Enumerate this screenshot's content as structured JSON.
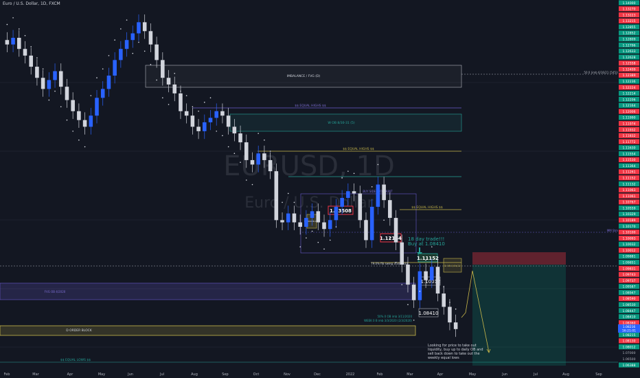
{
  "header": {
    "symbol_title": "Euro / U.S. Dollar, 1D, FXCM"
  },
  "watermark": {
    "ticker": "EURUSD, 1D",
    "name": "Euro / U.S. Dollar"
  },
  "colors": {
    "background": "#131722",
    "candle_up": "#2962ff",
    "candle_down": "#d1d4dc",
    "price_green": "#089981",
    "price_red": "#f23645",
    "zone_blue": "#4a3d8f",
    "zone_yellow": "#c9b84a",
    "teal": "#26a69a"
  },
  "chart_data": {
    "type": "candlestick",
    "x_ticks": [
      "Feb",
      "Mar",
      "Apr",
      "May",
      "Jun",
      "Jul",
      "Aug",
      "Sep",
      "Oct",
      "Nov",
      "Dec",
      "2022",
      "Feb",
      "Mar",
      "Apr",
      "May",
      "Jun",
      "Jul",
      "Aug",
      "Sep"
    ],
    "y_ticks": [
      "1.14000",
      "1.13270",
      "1.13223",
      "1.13215",
      "1.12855",
      "1.12852",
      "1.12809",
      "1.12796",
      "1.12633",
      "1.12628",
      "1.12558",
      "1.12409",
      "1.12389",
      "1.12236",
      "1.12224",
      "1.12214",
      "1.12206",
      "1.12164",
      "1.12006",
      "1.11990",
      "1.11974",
      "1.11932",
      "1.11832",
      "1.11772",
      "1.11630",
      "1.11554",
      "1.11530",
      "1.11364",
      "1.11261",
      "1.11152",
      "1.11132",
      "1.11063",
      "1.11061",
      "1.10767",
      "1.10559",
      "1.10329",
      "1.10189",
      "1.10170",
      "1.10100",
      "1.10093",
      "1.10032",
      "1.10012",
      "1.09881",
      "1.09851",
      "1.09831",
      "1.09743",
      "1.09737",
      "1.09587",
      "1.08947",
      "1.08590",
      "1.08530",
      "1.08447",
      "1.08410",
      "1.08360",
      "1.08216",
      "1.08215",
      "1.08130",
      "1.08012",
      "1.07000",
      "1.06500",
      "1.06388"
    ],
    "y_axis_colors": [
      "g",
      "r",
      "r",
      "r",
      "g",
      "g",
      "g",
      "g",
      "g",
      "g",
      "r",
      "r",
      "r",
      "g",
      "r",
      "g",
      "g",
      "g",
      "r",
      "g",
      "r",
      "r",
      "r",
      "r",
      "g",
      "g",
      "r",
      "g",
      "r",
      "r",
      "g",
      "r",
      "r",
      "r",
      "g",
      "g",
      "r",
      "g",
      "r",
      "r",
      "g",
      "r",
      "g",
      "g",
      "r",
      "r",
      "r",
      "g",
      "g",
      "r",
      "g",
      "g",
      "g",
      "r",
      "g",
      "g",
      "r",
      "g",
      "n",
      "n",
      "g"
    ],
    "current_price": "1.08216",
    "countdown": "16:21:01",
    "candles_approx": {
      "note": "approximate daily closes",
      "closes": [
        1.21,
        1.213,
        1.208,
        1.205,
        1.2,
        1.195,
        1.19,
        1.194,
        1.198,
        1.191,
        1.185,
        1.18,
        1.176,
        1.173,
        1.178,
        1.186,
        1.19,
        1.196,
        1.203,
        1.208,
        1.212,
        1.215,
        1.22,
        1.216,
        1.21,
        1.203,
        1.195,
        1.192,
        1.188,
        1.18,
        1.178,
        1.173,
        1.171,
        1.175,
        1.177,
        1.18,
        1.178,
        1.173,
        1.17,
        1.166,
        1.158,
        1.156,
        1.161,
        1.158,
        1.153,
        1.131,
        1.13,
        1.134,
        1.13,
        1.128,
        1.132,
        1.135,
        1.13,
        1.127,
        1.131,
        1.137,
        1.141,
        1.144,
        1.143,
        1.131,
        1.122,
        1.137,
        1.147,
        1.14,
        1.132,
        1.121,
        1.111,
        1.102,
        1.095,
        1.108,
        1.104,
        1.11,
        1.098,
        1.092,
        1.085,
        1.082
      ]
    }
  },
  "annotations": {
    "imbalance": "IMBALANCE / FVG (D)",
    "fib_top": "50 0 (imb 6/16/21 (545))",
    "equal_highs_1": "$$ EQUAL HIGHS $$",
    "ob_label": "W OB 8/30-31 (5)",
    "equal_highs_2": "$$ EQUAL HIGHS $$",
    "buy_stop": "BUY SIDE STOP HUNT",
    "price_113508": "1.13508",
    "price_112164": "1.12164",
    "equal_highs_3": "$$ EQUAL HIGHS $$",
    "ob_small": "D BRKR BLOCK",
    "trade_note": "18 day trade!!!",
    "buy_at": "Buy at 1.08410",
    "price_111152": "1.11152",
    "fib_mid": "79.0% fib swing 3/30/2020",
    "price_110012": "1.10012",
    "label_right_box": "D OB 3/30/22",
    "mm_stm": "MM Stm",
    "fvg_left": "FVG OB 4/2020",
    "order_block": "D ORDER BLOCK",
    "fib_low1": "50% 0 OB imb 3/11/2020",
    "fib_low2": "WEEK 0 B imb 3/3/2020 (2/3/2020)",
    "price_108410": "1.08410",
    "equal_lows": "$$ EQUAL LOWS $$",
    "note_text": [
      "Looking for price to take out",
      "liquidity, buy up to daily OB and",
      "sell back down to take out the",
      "weekly equal lows"
    ]
  }
}
